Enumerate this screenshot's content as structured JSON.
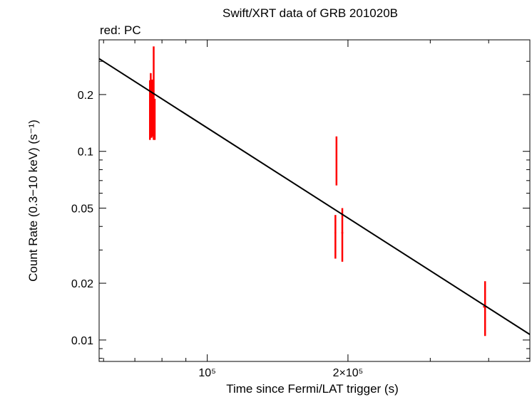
{
  "chart_data": {
    "type": "scatter",
    "title": "Swift/XRT data of GRB 201020B",
    "annotation": "red: PC",
    "xlabel": "Time since Fermi/LAT trigger (s)",
    "ylabel": "Count Rate (0.3−10 keV) (s⁻¹)",
    "x_scale": "log",
    "y_scale": "log",
    "xlim": [
      58700,
      490000
    ],
    "ylim": [
      0.0077,
      0.39
    ],
    "x_ticks": [
      {
        "value": 100000,
        "label": "10⁵"
      },
      {
        "value": 200000,
        "label": "2×10⁵"
      }
    ],
    "y_ticks": [
      {
        "value": 0.01,
        "label": "0.01"
      },
      {
        "value": 0.02,
        "label": "0.02"
      },
      {
        "value": 0.05,
        "label": "0.05"
      },
      {
        "value": 0.1,
        "label": "0.1"
      },
      {
        "value": 0.2,
        "label": "0.2"
      }
    ],
    "series": [
      {
        "name": "PC",
        "color": "#ff0000",
        "points": [
          {
            "x": 75400,
            "y": 0.17,
            "xerr": [
              150,
              150
            ],
            "yerr": [
              0.115,
              0.238
            ]
          },
          {
            "x": 75700,
            "y": 0.18,
            "xerr": [
              150,
              150
            ],
            "yerr": [
              0.125,
              0.26
            ]
          },
          {
            "x": 76000,
            "y": 0.16,
            "xerr": [
              150,
              150
            ],
            "yerr": [
              0.118,
              0.22
            ]
          },
          {
            "x": 76300,
            "y": 0.17,
            "xerr": [
              150,
              150
            ],
            "yerr": [
              0.12,
              0.24
            ]
          },
          {
            "x": 76800,
            "y": 0.235,
            "xerr": [
              200,
              200
            ],
            "yerr": [
              0.115,
              0.36
            ]
          },
          {
            "x": 77200,
            "y": 0.15,
            "xerr": [
              150,
              150
            ],
            "yerr": [
              0.115,
              0.19
            ]
          },
          {
            "x": 188000,
            "y": 0.037,
            "xerr": [
              800,
              800
            ],
            "yerr": [
              0.027,
              0.046
            ]
          },
          {
            "x": 189000,
            "y": 0.09,
            "xerr": [
              600,
              600
            ],
            "yerr": [
              0.066,
              0.12
            ]
          },
          {
            "x": 194500,
            "y": 0.037,
            "xerr": [
              900,
              900
            ],
            "yerr": [
              0.026,
              0.05
            ]
          },
          {
            "x": 393000,
            "y": 0.015,
            "xerr": [
              4000,
              4000
            ],
            "yerr": [
              0.0105,
              0.0205
            ]
          }
        ]
      }
    ],
    "fit_line": {
      "color": "#000000",
      "points": [
        {
          "x": 58700,
          "y": 0.31
        },
        {
          "x": 490000,
          "y": 0.0107
        }
      ]
    }
  }
}
